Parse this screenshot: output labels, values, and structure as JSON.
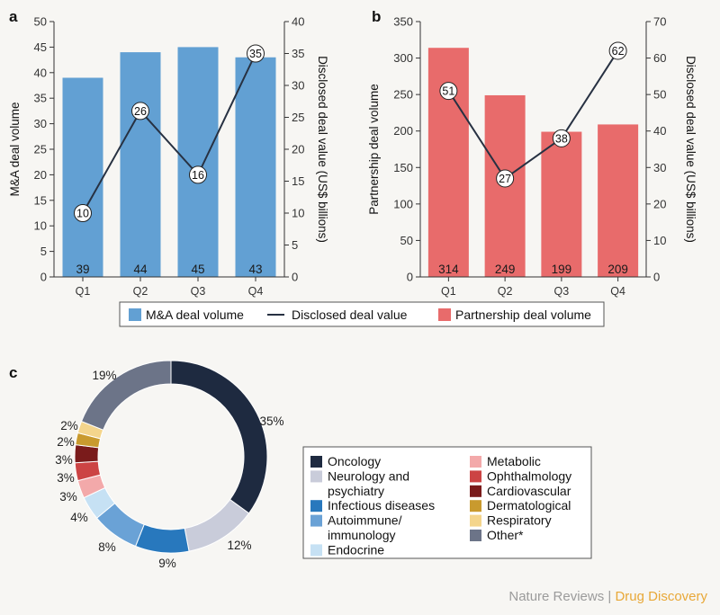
{
  "colors": {
    "ma_bar": "#62a0d3",
    "partnership_bar": "#e86b6b",
    "line": "#273142",
    "axis": "#333333",
    "background": "#f7f6f3",
    "brand_gray": "#9b9b9b",
    "brand_orange": "#e8a838"
  },
  "legend_top": {
    "items": [
      {
        "label": "M&A deal volume",
        "color": "#62a0d3",
        "kind": "box"
      },
      {
        "label": "Disclosed deal value",
        "color": "#273142",
        "kind": "line"
      },
      {
        "label": "Partnership deal volume",
        "color": "#e86b6b",
        "kind": "box"
      }
    ]
  },
  "brand": {
    "part1": "Nature Reviews",
    "sep": " | ",
    "part2": "Drug Discovery"
  },
  "chart_data": [
    {
      "panel": "a",
      "type": "bar",
      "categories": [
        "Q1",
        "Q2",
        "Q3",
        "Q4"
      ],
      "series": [
        {
          "name": "M&A deal volume",
          "values": [
            39,
            44,
            45,
            43
          ],
          "axis": "left",
          "type": "bar"
        },
        {
          "name": "Disclosed deal value",
          "values": [
            10,
            26,
            16,
            35
          ],
          "axis": "right",
          "type": "line"
        }
      ],
      "ylabel": "M&A deal volume",
      "ylabel_right": "Disclosed deal value (US$ billions)",
      "ylim": [
        0,
        50
      ],
      "yticks": [
        0,
        5,
        10,
        15,
        20,
        25,
        30,
        35,
        40,
        45,
        50
      ],
      "ylim_right": [
        0,
        40
      ],
      "yticks_right": [
        0,
        5,
        10,
        15,
        20,
        25,
        30,
        35,
        40
      ]
    },
    {
      "panel": "b",
      "type": "bar",
      "categories": [
        "Q1",
        "Q2",
        "Q3",
        "Q4"
      ],
      "series": [
        {
          "name": "Partnership deal volume",
          "values": [
            314,
            249,
            199,
            209
          ],
          "axis": "left",
          "type": "bar"
        },
        {
          "name": "Disclosed deal value",
          "values": [
            51,
            27,
            38,
            62
          ],
          "axis": "right",
          "type": "line"
        }
      ],
      "ylabel": "Partnership deal volume",
      "ylabel_right": "Disclosed deal value (US$ billions)",
      "ylim": [
        0,
        350
      ],
      "yticks": [
        0,
        50,
        100,
        150,
        200,
        250,
        300,
        350
      ],
      "ylim_right": [
        0,
        70
      ],
      "yticks_right": [
        0,
        10,
        20,
        30,
        40,
        50,
        60,
        70
      ]
    },
    {
      "panel": "c",
      "type": "pie",
      "donut": true,
      "slices": [
        {
          "label": "Oncology",
          "value": 35,
          "text": "35%",
          "color": "#1e2a40"
        },
        {
          "label": "Neurology and psychiatry",
          "value": 12,
          "text": "12%",
          "color": "#c9ccda"
        },
        {
          "label": "Infectious diseases",
          "value": 9,
          "text": "9%",
          "color": "#2878bd"
        },
        {
          "label": "Autoimmune/ immunology",
          "value": 8,
          "text": "8%",
          "color": "#6aa2d6"
        },
        {
          "label": "Endocrine",
          "value": 4,
          "text": "4%",
          "color": "#c6e1f4"
        },
        {
          "label": "Metabolic",
          "value": 3,
          "text": "3%",
          "color": "#f3a9aa"
        },
        {
          "label": "Ophthalmology",
          "value": 3,
          "text": "3%",
          "color": "#cc4444"
        },
        {
          "label": "Cardiovascular",
          "value": 3,
          "text": "3%",
          "color": "#7a1b1b"
        },
        {
          "label": "Dermatological",
          "value": 2,
          "text": "2%",
          "color": "#c99a2e"
        },
        {
          "label": "Respiratory",
          "value": 2,
          "text": "2%",
          "color": "#f4d58c"
        },
        {
          "label": "Other*",
          "value": 19,
          "text": "19%",
          "color": "#6c7488"
        }
      ],
      "legend_columns": [
        [
          {
            "lines": [
              "Oncology"
            ],
            "slice": 0
          },
          {
            "lines": [
              "Neurology and",
              "psychiatry"
            ],
            "slice": 1
          },
          {
            "lines": [
              "Infectious diseases"
            ],
            "slice": 2
          },
          {
            "lines": [
              "Autoimmune/",
              "immunology"
            ],
            "slice": 3
          },
          {
            "lines": [
              "Endocrine"
            ],
            "slice": 4
          }
        ],
        [
          {
            "lines": [
              "Metabolic"
            ],
            "slice": 5
          },
          {
            "lines": [
              "Ophthalmology"
            ],
            "slice": 6
          },
          {
            "lines": [
              "Cardiovascular"
            ],
            "slice": 7
          },
          {
            "lines": [
              "Dermatological"
            ],
            "slice": 8
          },
          {
            "lines": [
              "Respiratory"
            ],
            "slice": 9
          },
          {
            "lines": [
              "Other*"
            ],
            "slice": 10
          }
        ]
      ]
    }
  ]
}
